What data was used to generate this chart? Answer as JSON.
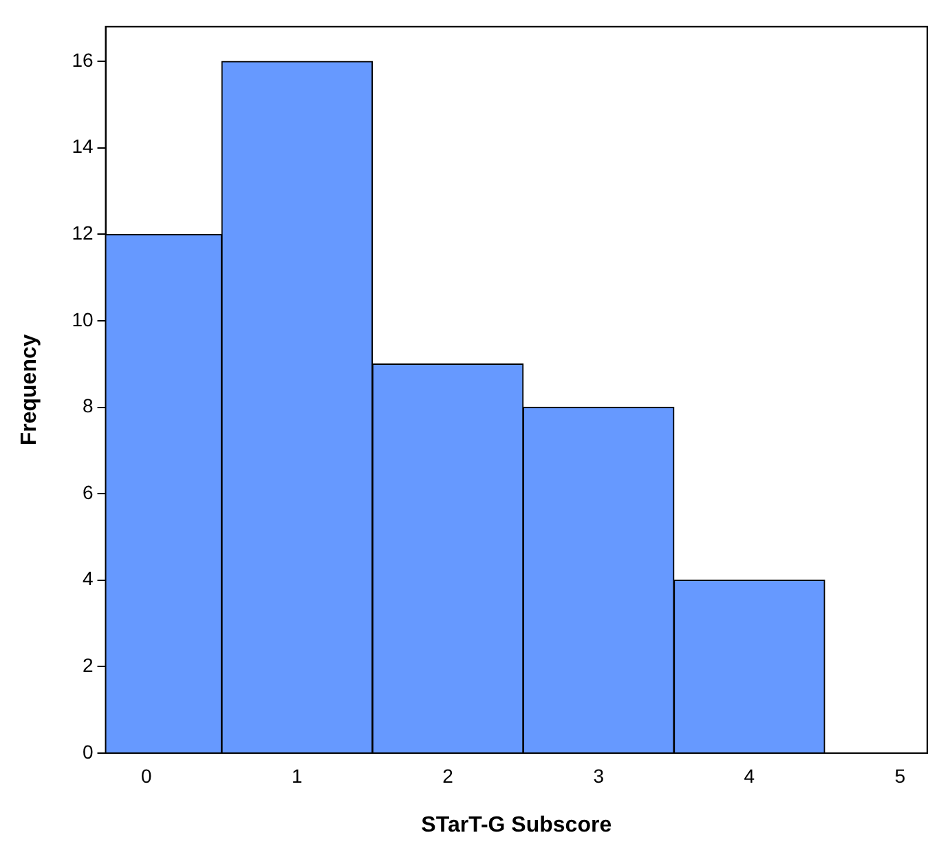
{
  "chart_data": {
    "type": "histogram",
    "xlabel": "STarT-G Subscore",
    "ylabel": "Frequency",
    "bins": [
      -0.5,
      0.5,
      1.5,
      2.5,
      3.5,
      4.5
    ],
    "values": [
      12,
      16,
      9,
      8,
      4
    ],
    "color": "#6699ff",
    "xlim": [
      -0.27,
      5.18
    ],
    "xticks": [
      0,
      1,
      2,
      3,
      4,
      5
    ],
    "ylim": [
      0,
      16.8
    ],
    "yticks": [
      0,
      2,
      4,
      6,
      8,
      10,
      12,
      14,
      16
    ],
    "grid": false,
    "legend": false
  }
}
